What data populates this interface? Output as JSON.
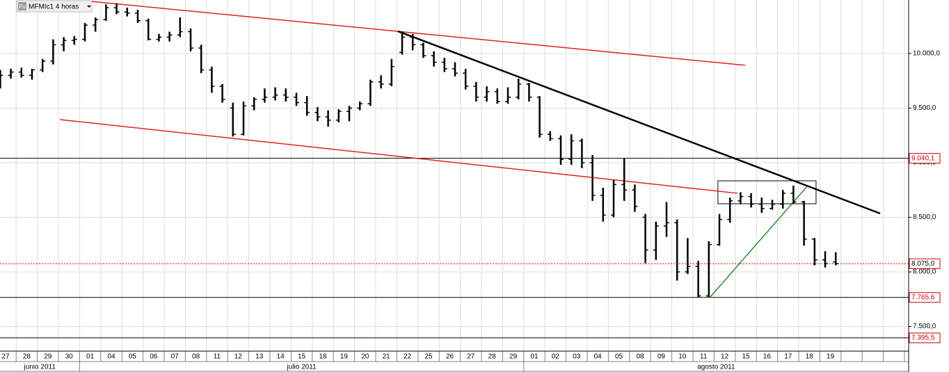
{
  "chart_data": {
    "type": "ohlc",
    "title": "MFMIc1 4 horas",
    "icon": "Fu",
    "categories": [
      "27",
      "28",
      "29",
      "30",
      "01",
      "04",
      "05",
      "06",
      "07",
      "08",
      "11",
      "12",
      "13",
      "14",
      "15",
      "18",
      "19",
      "20",
      "21",
      "22",
      "25",
      "26",
      "27",
      "28",
      "29",
      "01",
      "02",
      "03",
      "04",
      "05",
      "08",
      "09",
      "10",
      "11",
      "12",
      "15",
      "16",
      "17",
      "18",
      "19"
    ],
    "months": [
      "junio 2011",
      "julio 2011",
      "agosto 2011"
    ],
    "open": [
      9760,
      9800,
      9830,
      9800,
      9850,
      9930,
      10080,
      10120,
      10130,
      10260,
      10310,
      10420,
      10380,
      10370,
      10300,
      10130,
      10150,
      10170,
      10200,
      10050,
      9850,
      9700,
      9500,
      9260,
      9520,
      9580,
      9600,
      9620,
      9600,
      9550,
      9460,
      9420,
      9390,
      9470,
      9500,
      9540,
      9740,
      9720,
      10010,
      10150,
      10080,
      9980,
      9920,
      9860,
      9820,
      9700,
      9600,
      9650,
      9560,
      9600,
      9720,
      9600,
      9260,
      9220,
      9030,
      9200,
      9000,
      8700,
      8520,
      8800,
      8750,
      8500,
      8200,
      8420,
      8450,
      8000,
      8050,
      7780,
      8250,
      8480,
      8650,
      8690,
      8620,
      8580,
      8620,
      8720,
      8640,
      8300,
      8110,
      8090
    ],
    "high": [
      9850,
      9860,
      9870,
      9860,
      9950,
      10130,
      10150,
      10160,
      10280,
      10330,
      10450,
      10460,
      10420,
      10400,
      10320,
      10180,
      10200,
      10330,
      10230,
      10080,
      9880,
      9720,
      9550,
      9560,
      9600,
      9680,
      9690,
      9680,
      9640,
      9610,
      9510,
      9480,
      9490,
      9520,
      9560,
      9760,
      9800,
      9950,
      10200,
      10180,
      10100,
      10020,
      9960,
      9920,
      9860,
      9740,
      9700,
      9680,
      9690,
      9770,
      9730,
      9610,
      9290,
      9250,
      9260,
      9220,
      9070,
      8770,
      8840,
      9040,
      8800,
      8530,
      8460,
      8640,
      8480,
      8310,
      8100,
      8280,
      8530,
      8680,
      8730,
      8720,
      8680,
      8660,
      8750,
      8790,
      8650,
      8310,
      8190,
      8180
    ],
    "low": [
      9680,
      9770,
      9780,
      9760,
      9830,
      9900,
      10020,
      10080,
      10110,
      10200,
      10300,
      10360,
      10340,
      10280,
      10120,
      10110,
      10110,
      10150,
      10020,
      9820,
      9640,
      9550,
      9240,
      9250,
      9480,
      9550,
      9570,
      9560,
      9520,
      9430,
      9380,
      9330,
      9370,
      9380,
      9480,
      9520,
      9680,
      9700,
      9990,
      10030,
      9960,
      9880,
      9830,
      9790,
      9670,
      9560,
      9560,
      9540,
      9540,
      9580,
      9560,
      9230,
      9200,
      8980,
      8980,
      8950,
      8650,
      8460,
      8500,
      8650,
      8550,
      8080,
      8110,
      8320,
      7920,
      7980,
      7770,
      7770,
      8240,
      8450,
      8620,
      8590,
      8540,
      8570,
      8580,
      8620,
      8240,
      8060,
      8040,
      8060
    ],
    "close": [
      9800,
      9830,
      9800,
      9850,
      9930,
      10080,
      10120,
      10130,
      10260,
      10310,
      10420,
      10380,
      10370,
      10300,
      10130,
      10150,
      10170,
      10200,
      10050,
      9850,
      9700,
      9580,
      9260,
      9520,
      9580,
      9600,
      9620,
      9600,
      9550,
      9460,
      9420,
      9390,
      9470,
      9500,
      9540,
      9740,
      9720,
      9880,
      10150,
      10080,
      9980,
      9920,
      9860,
      9820,
      9700,
      9600,
      9650,
      9560,
      9600,
      9720,
      9600,
      9260,
      9220,
      9030,
      9200,
      9000,
      8700,
      8520,
      8800,
      8750,
      8600,
      8200,
      8420,
      8450,
      8000,
      8050,
      7780,
      8250,
      8480,
      8650,
      8690,
      8620,
      8580,
      8620,
      8720,
      8640,
      8300,
      8110,
      8075,
      8075
    ],
    "trendlines": [
      {
        "color": "#e02020",
        "x": [
          4.01,
          34.97
        ],
        "y": [
          10478,
          9892
        ]
      },
      {
        "color": "#e02020",
        "x": [
          2.57,
          34.6
        ],
        "y": [
          9395,
          8720
        ]
      },
      {
        "color": "#000000",
        "x": [
          18.55,
          41.35
        ],
        "y": [
          10204,
          8535
        ]
      },
      {
        "color": "#2a8a2a",
        "x": [
          33.29,
          37.9
        ],
        "y": [
          7764,
          8783
        ]
      }
    ],
    "box": {
      "x": [
        33.68,
        38.32
      ],
      "y": [
        8624,
        8834
      ]
    },
    "levels": [
      {
        "value": 9040.1,
        "label": "9.040,1",
        "color": "#000000",
        "label_color": "#c00000",
        "dotted": false
      },
      {
        "value": 8075.0,
        "label": "8.075,0",
        "color": "#c00000",
        "label_color": "#000000",
        "dotted": true
      },
      {
        "value": 7765.6,
        "label": "7.765,6",
        "color": "#000000",
        "label_color": "#c00000",
        "dotted": false
      },
      {
        "value": 7395.5,
        "label": "7.395,5",
        "color": "#000000",
        "label_color": "#c00000",
        "dotted": false
      }
    ],
    "ylim": [
      7274,
      10490
    ],
    "yticks": [
      {
        "value": 7500,
        "label": "7.500,0"
      },
      {
        "value": 8000,
        "label": "8.000,0"
      },
      {
        "value": 8500,
        "label": "8.500,0"
      },
      {
        "value": 9000,
        "label": "9.000,0"
      },
      {
        "value": 9500,
        "label": "9.500,0"
      },
      {
        "value": 10000,
        "label": "10.000,0"
      }
    ],
    "grid": true
  }
}
